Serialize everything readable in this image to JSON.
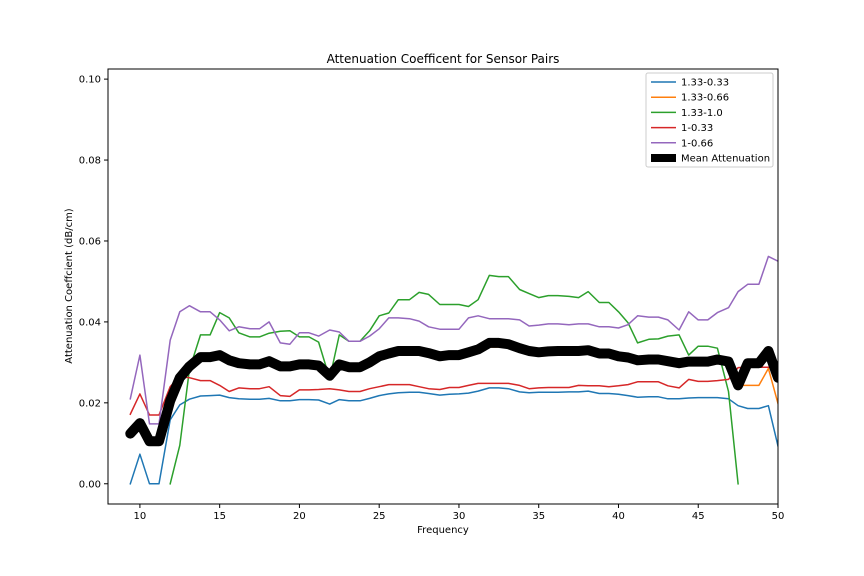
{
  "chart_data": {
    "type": "line",
    "title": "Attenuation Coefficent for Sensor Pairs",
    "xlabel": "Frequency",
    "ylabel": "Attenuation Coeffcient (dB/cm)",
    "xlim": [
      8,
      50
    ],
    "ylim": [
      -0.005,
      0.1025
    ],
    "xticks": [
      10,
      15,
      20,
      25,
      30,
      35,
      40,
      45,
      50
    ],
    "yticks": [
      0.0,
      0.02,
      0.04,
      0.06,
      0.08,
      0.1
    ],
    "ytick_labels": [
      "0.00",
      "0.02",
      "0.04",
      "0.06",
      "0.08",
      "0.10"
    ],
    "grid": false,
    "legend_position": "top-right",
    "x": [
      9.4,
      10.0,
      10.6,
      11.2,
      11.9,
      12.5,
      13.1,
      13.8,
      14.4,
      15.0,
      15.6,
      16.2,
      16.9,
      17.5,
      18.1,
      18.8,
      19.4,
      20.0,
      20.6,
      21.2,
      21.9,
      22.5,
      23.1,
      23.8,
      24.4,
      25.0,
      25.6,
      26.2,
      26.9,
      27.5,
      28.1,
      28.8,
      29.4,
      30.0,
      30.6,
      31.2,
      31.9,
      32.5,
      33.1,
      33.8,
      34.4,
      35.0,
      35.6,
      36.2,
      36.9,
      37.5,
      38.1,
      38.8,
      39.4,
      40.0,
      40.6,
      41.2,
      41.9,
      42.5,
      43.1,
      43.8,
      44.4,
      45.0,
      45.6,
      46.2,
      46.9,
      47.5,
      48.1,
      48.8,
      49.4,
      50.0
    ],
    "series": [
      {
        "name": "1.33-0.33",
        "color": "#1f77b4",
        "width": 1.5,
        "values": [
          0.0,
          0.0073,
          0.0,
          0.0,
          0.0158,
          0.0195,
          0.0209,
          0.0217,
          0.0218,
          0.0219,
          0.0213,
          0.021,
          0.0209,
          0.0209,
          0.0211,
          0.0205,
          0.0205,
          0.0208,
          0.0208,
          0.0207,
          0.0197,
          0.0208,
          0.0205,
          0.0205,
          0.0211,
          0.0218,
          0.0222,
          0.0225,
          0.0226,
          0.0226,
          0.0223,
          0.0219,
          0.0221,
          0.0222,
          0.0224,
          0.0229,
          0.0237,
          0.0237,
          0.0235,
          0.0227,
          0.0225,
          0.0226,
          0.0226,
          0.0226,
          0.0227,
          0.0227,
          0.0229,
          0.0223,
          0.0223,
          0.0221,
          0.0218,
          0.0214,
          0.0215,
          0.0215,
          0.021,
          0.021,
          0.0212,
          0.0213,
          0.0213,
          0.0213,
          0.021,
          0.0193,
          0.0186,
          0.0186,
          0.0193,
          0.0093
        ]
      },
      {
        "name": "1.33-0.66",
        "color": "#ff7f0e",
        "width": 1.5,
        "values": [
          0.0124,
          0.015,
          0.0105,
          0.0105,
          0.0205,
          0.0262,
          0.029,
          0.0313,
          0.0313,
          0.0318,
          0.0305,
          0.0298,
          0.0295,
          0.0295,
          0.0303,
          0.029,
          0.029,
          0.0295,
          0.0295,
          0.0292,
          0.0267,
          0.0295,
          0.0288,
          0.0288,
          0.03,
          0.0315,
          0.0322,
          0.0328,
          0.0328,
          0.0328,
          0.0323,
          0.0315,
          0.0318,
          0.0318,
          0.0325,
          0.0332,
          0.0338,
          0.0338,
          0.0338,
          0.033,
          0.0327,
          0.0325,
          0.0327,
          0.0328,
          0.0328,
          0.0328,
          0.0328,
          0.032,
          0.032,
          0.0315,
          0.0312,
          0.0305,
          0.0307,
          0.0307,
          0.0303,
          0.0298,
          0.0298,
          0.0298,
          0.0298,
          0.0303,
          0.0298,
          0.0243,
          0.0243,
          0.0243,
          0.0285,
          0.0198
        ]
      },
      {
        "name": "1.33-1.0",
        "color": "#2ca02c",
        "width": 1.5,
        "values": [
          null,
          null,
          null,
          null,
          0.0,
          0.0095,
          0.0282,
          0.0368,
          0.0368,
          0.0423,
          0.041,
          0.0373,
          0.0363,
          0.0363,
          0.0372,
          0.0377,
          0.0378,
          0.0363,
          0.0363,
          0.035,
          0.026,
          0.0368,
          0.0352,
          0.0352,
          0.0378,
          0.0415,
          0.0422,
          0.0455,
          0.0455,
          0.0473,
          0.0468,
          0.0443,
          0.0443,
          0.0443,
          0.0438,
          0.0455,
          0.0515,
          0.0512,
          0.0512,
          0.048,
          0.047,
          0.046,
          0.0465,
          0.0465,
          0.0463,
          0.046,
          0.0475,
          0.0448,
          0.0448,
          0.0425,
          0.0398,
          0.0348,
          0.0357,
          0.0358,
          0.0365,
          0.0368,
          0.0318,
          0.034,
          0.034,
          0.0335,
          0.0228,
          0.0,
          null,
          null,
          null,
          null
        ]
      },
      {
        "name": "1-0.33",
        "color": "#d62728",
        "width": 1.5,
        "values": [
          0.0172,
          0.0222,
          0.017,
          0.017,
          0.024,
          0.0265,
          0.0262,
          0.0255,
          0.0255,
          0.0243,
          0.0228,
          0.0237,
          0.0235,
          0.0235,
          0.024,
          0.0218,
          0.0216,
          0.0232,
          0.0232,
          0.0233,
          0.0235,
          0.0232,
          0.0228,
          0.0228,
          0.0235,
          0.024,
          0.0245,
          0.0245,
          0.0245,
          0.024,
          0.0235,
          0.0233,
          0.0238,
          0.0238,
          0.0243,
          0.0248,
          0.0248,
          0.0248,
          0.0248,
          0.0243,
          0.0235,
          0.0237,
          0.0238,
          0.0238,
          0.0238,
          0.0243,
          0.0242,
          0.0242,
          0.024,
          0.0242,
          0.0245,
          0.0252,
          0.0252,
          0.0252,
          0.0242,
          0.0237,
          0.0258,
          0.0253,
          0.0253,
          0.0255,
          0.0258,
          0.0287,
          0.0288,
          0.0288,
          0.0288,
          0.0285
        ]
      },
      {
        "name": "1-0.66",
        "color": "#9467bd",
        "width": 1.5,
        "values": [
          0.021,
          0.0318,
          0.0148,
          0.0148,
          0.0355,
          0.0425,
          0.044,
          0.0425,
          0.0425,
          0.0405,
          0.0378,
          0.0388,
          0.0383,
          0.0383,
          0.04,
          0.0348,
          0.0345,
          0.0373,
          0.0373,
          0.0365,
          0.038,
          0.0375,
          0.0352,
          0.0352,
          0.0365,
          0.0383,
          0.041,
          0.041,
          0.0408,
          0.0402,
          0.0388,
          0.0382,
          0.0382,
          0.0382,
          0.041,
          0.0415,
          0.0408,
          0.0408,
          0.0408,
          0.0405,
          0.039,
          0.0392,
          0.0395,
          0.0395,
          0.0393,
          0.0395,
          0.0395,
          0.0388,
          0.0388,
          0.0385,
          0.0393,
          0.0415,
          0.0412,
          0.0412,
          0.0405,
          0.038,
          0.0425,
          0.0405,
          0.0405,
          0.0423,
          0.0435,
          0.0475,
          0.0493,
          0.0493,
          0.0562,
          0.055
        ]
      },
      {
        "name": "Mean Attenuation",
        "color": "#000000",
        "width": 10,
        "values": [
          0.0124,
          0.015,
          0.0105,
          0.0105,
          0.0205,
          0.0262,
          0.029,
          0.0313,
          0.0313,
          0.0318,
          0.0305,
          0.0298,
          0.0295,
          0.0295,
          0.0303,
          0.029,
          0.029,
          0.0295,
          0.0295,
          0.0292,
          0.0267,
          0.0295,
          0.0288,
          0.0288,
          0.03,
          0.0315,
          0.0322,
          0.0328,
          0.0328,
          0.0328,
          0.0323,
          0.0315,
          0.0318,
          0.0318,
          0.0325,
          0.0332,
          0.0348,
          0.0348,
          0.0345,
          0.0335,
          0.0328,
          0.0325,
          0.0327,
          0.0328,
          0.0328,
          0.0328,
          0.033,
          0.0322,
          0.0322,
          0.0315,
          0.0312,
          0.0305,
          0.0307,
          0.0307,
          0.0303,
          0.0298,
          0.0302,
          0.0302,
          0.0302,
          0.0307,
          0.0302,
          0.0243,
          0.0298,
          0.0298,
          0.0328,
          0.0262
        ]
      }
    ]
  }
}
